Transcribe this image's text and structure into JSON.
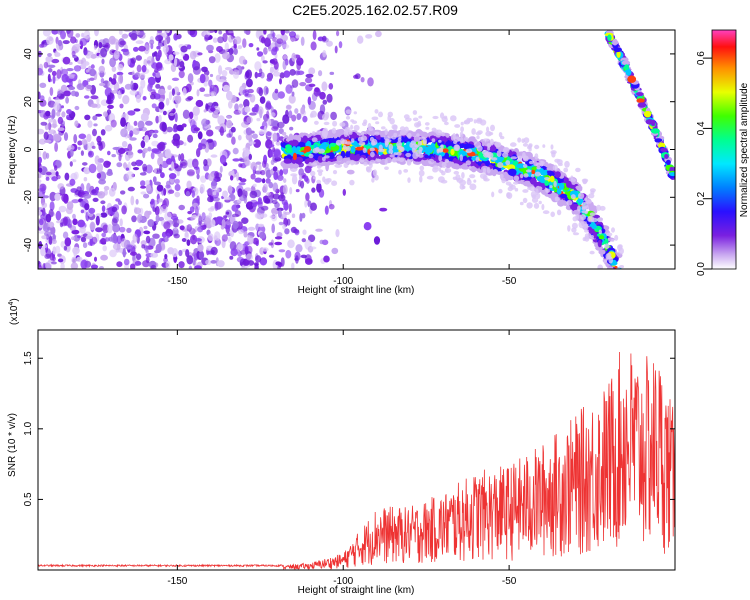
{
  "title": "C2E5.2025.162.02.57.R09",
  "chart_data": [
    {
      "type": "heatmap",
      "xlabel": "Height of straight line (km)",
      "ylabel": "Frequency (Hz)",
      "xlim": [
        -192,
        0
      ],
      "ylim": [
        -50,
        50
      ],
      "xticks": [
        -150,
        -100,
        -50
      ],
      "yticks": [
        -40,
        -20,
        0,
        20,
        40
      ],
      "colorbar": {
        "label": "Normalized spectral amplitude",
        "range": [
          0,
          0.68
        ],
        "ticks": [
          "0.0",
          "0.2",
          "0.4",
          "0.6"
        ]
      },
      "ridge": [
        {
          "x": -115,
          "y": -1
        },
        {
          "x": -110,
          "y": 0
        },
        {
          "x": -100,
          "y": 1
        },
        {
          "x": -90,
          "y": 1
        },
        {
          "x": -80,
          "y": 1
        },
        {
          "x": -70,
          "y": 0
        },
        {
          "x": -60,
          "y": -2
        },
        {
          "x": -50,
          "y": -6
        },
        {
          "x": -40,
          "y": -11
        },
        {
          "x": -30,
          "y": -20
        },
        {
          "x": -25,
          "y": -30
        },
        {
          "x": -20,
          "y": -42
        },
        {
          "x": -18,
          "y": -50
        }
      ],
      "ridge2": [
        {
          "x": -20,
          "y": 48
        },
        {
          "x": -15,
          "y": 35
        },
        {
          "x": -10,
          "y": 20
        },
        {
          "x": -5,
          "y": 5
        },
        {
          "x": -1,
          "y": -10
        }
      ],
      "noise_extent_x": [
        -192,
        -100
      ],
      "grid": false
    },
    {
      "type": "line",
      "xlabel": "Height of straight line (km)",
      "ylabel": "SNR (10 * v/v)",
      "y_multiplier_label": "(x10",
      "y_multiplier_exp": "4",
      "y_multiplier_close": ")",
      "xlim": [
        -192,
        0
      ],
      "ylim": [
        0,
        1.7
      ],
      "xticks": [
        -150,
        -100,
        -50
      ],
      "yticks": [
        "0.5",
        "1.0",
        "1.5"
      ],
      "series_color": "#ee3333",
      "envelope": [
        {
          "x": -192,
          "y": 0.03
        },
        {
          "x": -120,
          "y": 0.03
        },
        {
          "x": -110,
          "y": 0.05
        },
        {
          "x": -100,
          "y": 0.12
        },
        {
          "x": -90,
          "y": 0.45
        },
        {
          "x": -80,
          "y": 0.45
        },
        {
          "x": -70,
          "y": 0.55
        },
        {
          "x": -60,
          "y": 0.7
        },
        {
          "x": -50,
          "y": 0.75
        },
        {
          "x": -40,
          "y": 0.9
        },
        {
          "x": -30,
          "y": 1.1
        },
        {
          "x": -20,
          "y": 1.35
        },
        {
          "x": -15,
          "y": 1.65
        },
        {
          "x": -10,
          "y": 1.5
        },
        {
          "x": -5,
          "y": 1.55
        },
        {
          "x": 0,
          "y": 1.1
        }
      ],
      "grid": false
    }
  ]
}
